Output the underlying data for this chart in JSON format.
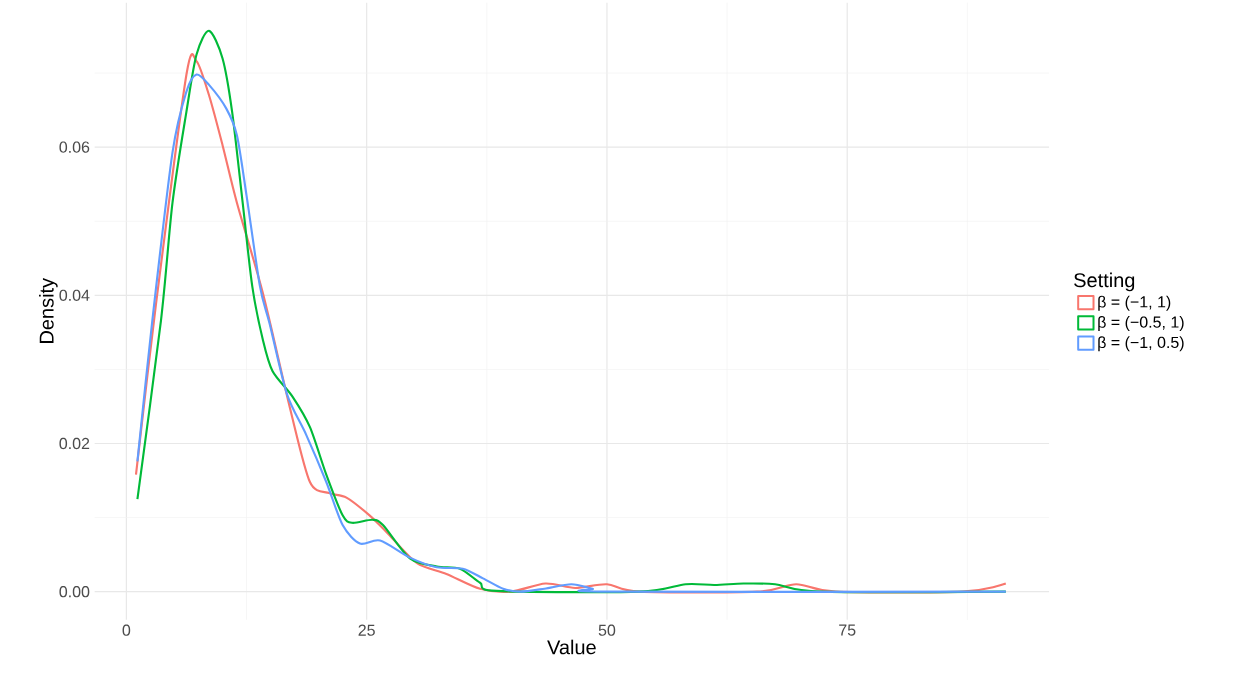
{
  "chart_data": {
    "type": "line",
    "xlabel": "Value",
    "ylabel": "Density",
    "legend_title": "Setting",
    "xlim": [
      -3.3,
      96
    ],
    "ylim": [
      -0.0038,
      0.0795
    ],
    "xticks": [
      0,
      25,
      50,
      75
    ],
    "yticks": [
      {
        "value": 0,
        "label": "0.00"
      },
      {
        "value": 0.02,
        "label": "0.02"
      },
      {
        "value": 0.04,
        "label": "0.04"
      },
      {
        "value": 0.06,
        "label": "0.06"
      }
    ],
    "grid": true,
    "legend": "right",
    "marker": "none",
    "line_style": "solid",
    "series": [
      {
        "name": "β = (−1, 1)",
        "color": "#f8766d",
        "x": [
          1.0,
          3.1,
          6.25,
          7.3,
          8.6,
          10,
          11.5,
          14.2,
          17,
          19.1,
          21.1,
          22.9,
          25.3,
          27.1,
          30.2,
          33.3,
          36.8,
          40,
          43.6,
          46.7,
          50,
          53.4,
          65.6,
          69.7,
          73.8,
          87,
          91.5
        ],
        "values": [
          0.0158,
          0.039,
          0.0698,
          0.0716,
          0.067,
          0.0603,
          0.0525,
          0.0403,
          0.0249,
          0.0148,
          0.0133,
          0.0127,
          0.0103,
          0.008,
          0.0039,
          0.0024,
          0.0004,
          0.0,
          0.0011,
          0.0005,
          0.001,
          0.0,
          0.0,
          0.001,
          0.0,
          0.0,
          0.0011
        ]
      },
      {
        "name": "β = (−0.5, 1)",
        "color": "#00ba38",
        "x": [
          1.15,
          3.6,
          4.8,
          6.25,
          7.3,
          8.6,
          10,
          11,
          12.1,
          13.1,
          14.2,
          15.2,
          17.3,
          19.1,
          20.8,
          22.5,
          23.5,
          25.6,
          26.7,
          29.5,
          32.3,
          34.7,
          36.8,
          38.5,
          53.4,
          58.2,
          61.2,
          64.2,
          67.5,
          72.3,
          91.5
        ],
        "values": [
          0.0125,
          0.0366,
          0.0525,
          0.0648,
          0.0725,
          0.0757,
          0.072,
          0.0648,
          0.0525,
          0.0412,
          0.034,
          0.0298,
          0.0263,
          0.0222,
          0.0158,
          0.0103,
          0.0093,
          0.0097,
          0.009,
          0.0045,
          0.0034,
          0.0031,
          0.0012,
          0.0001,
          0.0,
          0.001,
          0.0009,
          0.0011,
          0.001,
          0.0,
          0.0
        ]
      },
      {
        "name": "β = (−1, 0.5)",
        "color": "#619cff",
        "x": [
          1.15,
          2.7,
          4.8,
          6.25,
          7.3,
          8.6,
          10.4,
          11.5,
          12.5,
          13.9,
          14.9,
          16.7,
          18.7,
          20.8,
          22.5,
          24.3,
          26.4,
          29.5,
          32.3,
          35,
          37.1,
          39.2,
          41,
          43.5,
          46.3,
          48.5,
          50,
          91.5
        ],
        "values": [
          0.0176,
          0.0366,
          0.0593,
          0.0675,
          0.0698,
          0.0684,
          0.0652,
          0.0616,
          0.0535,
          0.0412,
          0.0362,
          0.0267,
          0.0212,
          0.0148,
          0.009,
          0.0065,
          0.0069,
          0.0046,
          0.0033,
          0.0031,
          0.0018,
          0.0004,
          0.0,
          0.0004,
          0.001,
          0.0004,
          0.0,
          0.0
        ]
      }
    ]
  }
}
